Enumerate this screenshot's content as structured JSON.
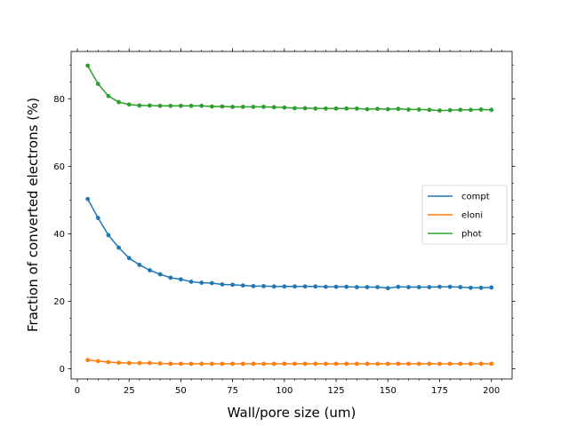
{
  "chart_data": {
    "type": "line",
    "title": "",
    "xlabel": "Wall/pore size (um)",
    "ylabel": "Fraction of converted electrons (%)",
    "xlim": [
      -3,
      210
    ],
    "ylim": [
      -3,
      94
    ],
    "xticks": [
      0,
      25,
      50,
      75,
      100,
      125,
      150,
      175,
      200
    ],
    "yticks": [
      0,
      20,
      40,
      60,
      80
    ],
    "grid": false,
    "legend_position": "center-right",
    "x": [
      5,
      10,
      15,
      20,
      25,
      30,
      35,
      40,
      45,
      50,
      55,
      60,
      65,
      70,
      75,
      80,
      85,
      90,
      95,
      100,
      105,
      110,
      115,
      120,
      125,
      130,
      135,
      140,
      145,
      150,
      155,
      160,
      165,
      170,
      175,
      180,
      185,
      190,
      195,
      200
    ],
    "series": [
      {
        "name": "compt",
        "color": "#1f77b4",
        "values": [
          50.3,
          44.7,
          39.6,
          35.9,
          32.8,
          30.8,
          29.2,
          28.0,
          27.0,
          26.5,
          25.8,
          25.5,
          25.4,
          25.0,
          24.9,
          24.7,
          24.5,
          24.5,
          24.4,
          24.4,
          24.4,
          24.4,
          24.4,
          24.3,
          24.3,
          24.3,
          24.2,
          24.2,
          24.2,
          23.9,
          24.3,
          24.2,
          24.2,
          24.2,
          24.3,
          24.3,
          24.2,
          24.0,
          24.0,
          24.1
        ]
      },
      {
        "name": "eloni",
        "color": "#ff7f0e",
        "values": [
          2.6,
          2.3,
          2.0,
          1.8,
          1.7,
          1.7,
          1.7,
          1.6,
          1.5,
          1.5,
          1.5,
          1.5,
          1.5,
          1.5,
          1.5,
          1.5,
          1.5,
          1.5,
          1.5,
          1.5,
          1.5,
          1.5,
          1.5,
          1.5,
          1.5,
          1.5,
          1.5,
          1.5,
          1.5,
          1.5,
          1.5,
          1.5,
          1.5,
          1.5,
          1.5,
          1.5,
          1.5,
          1.5,
          1.5,
          1.5
        ]
      },
      {
        "name": "phot",
        "color": "#2ca02c",
        "values": [
          89.8,
          84.4,
          80.8,
          79.0,
          78.3,
          78.0,
          78.0,
          77.9,
          77.9,
          77.9,
          77.9,
          77.9,
          77.7,
          77.7,
          77.6,
          77.6,
          77.6,
          77.6,
          77.5,
          77.4,
          77.2,
          77.2,
          77.1,
          77.1,
          77.1,
          77.1,
          77.1,
          76.9,
          77.0,
          76.9,
          77.0,
          76.8,
          76.8,
          76.7,
          76.5,
          76.6,
          76.7,
          76.7,
          76.8,
          76.7
        ]
      }
    ]
  }
}
